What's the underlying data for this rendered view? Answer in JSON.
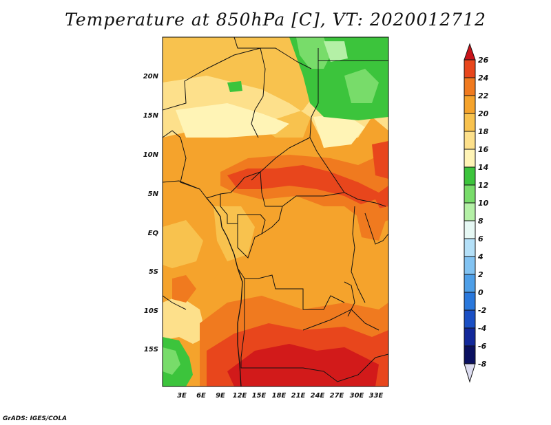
{
  "title": "Temperature at 850hPa [C], VT: 2020012712",
  "credit": "GrADS: IGES/COLA",
  "lat_labels": [
    "20N",
    "15N",
    "10N",
    "5N",
    "EQ",
    "5S",
    "10S",
    "15S"
  ],
  "lon_labels": [
    "3E",
    "6E",
    "9E",
    "12E",
    "15E",
    "18E",
    "21E",
    "24E",
    "27E",
    "30E",
    "33E"
  ],
  "colorbar": {
    "labels": [
      "26",
      "24",
      "22",
      "20",
      "18",
      "16",
      "14",
      "12",
      "10",
      "8",
      "6",
      "4",
      "2",
      "0",
      "-2",
      "-4",
      "-6",
      "-8"
    ],
    "colors": [
      "#d21a1a",
      "#e8461c",
      "#f07a1f",
      "#f5a32c",
      "#f8c24e",
      "#fde08b",
      "#fff4b6",
      "#3cc43c",
      "#78dc6a",
      "#b4f0a6",
      "#e6f8f4",
      "#b4e0f8",
      "#82c3f2",
      "#4e9fe8",
      "#2a78dc",
      "#1a4fc4",
      "#12289a",
      "#0a1060"
    ],
    "top_arrow_color": "#c8141a",
    "bottom_arrow_color": "#dcdcf0"
  },
  "field_colors": {
    "c26": "#d21a1a",
    "c24": "#e8461c",
    "c22": "#f07a1f",
    "c20": "#f5a32c",
    "c18": "#f8c24e",
    "c16": "#fde08b",
    "c14": "#fff4b6",
    "c12": "#3cc43c",
    "c10": "#78dc6a",
    "c8": "#b4f0a6"
  }
}
